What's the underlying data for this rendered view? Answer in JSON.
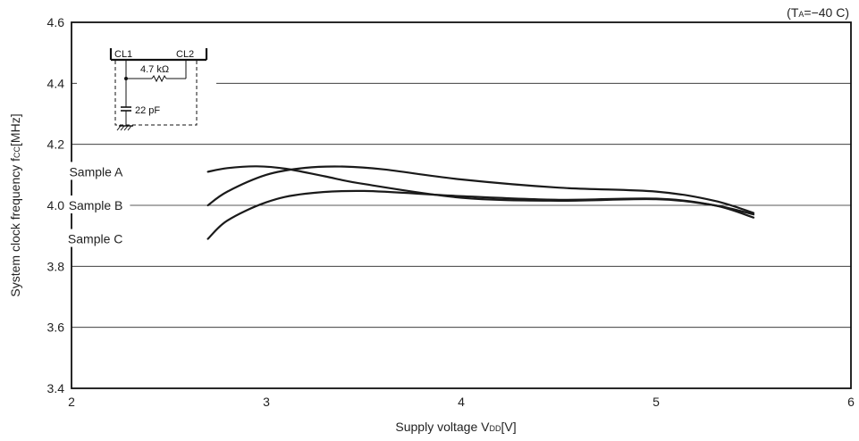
{
  "chart_data": {
    "type": "line",
    "condition": {
      "prefix": "(T",
      "sub": "A",
      "suffix": "=−40 C)"
    },
    "xlabel": {
      "text": "Supply voltage  V",
      "sub": "DD",
      "unit": "[V]"
    },
    "ylabel": {
      "text": "System clock frequency  f",
      "sub": "CC",
      "unit": "[MHz]"
    },
    "xlim": [
      2,
      6
    ],
    "ylim": [
      3.4,
      4.6
    ],
    "xticks": [
      "2",
      "3",
      "4",
      "5",
      "6"
    ],
    "yticks": [
      "3.4",
      "3.6",
      "3.8",
      "4.0",
      "4.2",
      "4.4",
      "4.6"
    ],
    "grid": "horizontal",
    "series": [
      {
        "name": "Sample A",
        "x": [
          2.7,
          2.8,
          2.95,
          3.1,
          3.3,
          3.5,
          4.0,
          4.5,
          5.0,
          5.3,
          5.5
        ],
        "y": [
          4.11,
          4.122,
          4.128,
          4.12,
          4.095,
          4.07,
          4.025,
          4.015,
          4.02,
          4.0,
          3.97
        ]
      },
      {
        "name": "Sample B",
        "x": [
          2.7,
          2.8,
          3.0,
          3.2,
          3.4,
          3.6,
          4.0,
          4.5,
          5.0,
          5.3,
          5.5
        ],
        "y": [
          4.0,
          4.045,
          4.1,
          4.123,
          4.127,
          4.118,
          4.085,
          4.058,
          4.045,
          4.015,
          3.975
        ]
      },
      {
        "name": "Sample C",
        "x": [
          2.7,
          2.8,
          3.0,
          3.2,
          3.5,
          4.0,
          4.5,
          5.0,
          5.3,
          5.5
        ],
        "y": [
          3.89,
          3.95,
          4.01,
          4.038,
          4.047,
          4.03,
          4.018,
          4.022,
          4.0,
          3.96
        ]
      }
    ],
    "series_labels": [
      {
        "text": "Sample A",
        "x": 2.3,
        "y": 4.11
      },
      {
        "text": "Sample B",
        "x": 2.3,
        "y": 4.0
      },
      {
        "text": "Sample C",
        "x": 2.3,
        "y": 3.89
      }
    ],
    "inset": {
      "pin1": "CL1",
      "pin2": "CL2",
      "resistor": "4.7 kΩ",
      "capacitor": "22 pF"
    }
  }
}
